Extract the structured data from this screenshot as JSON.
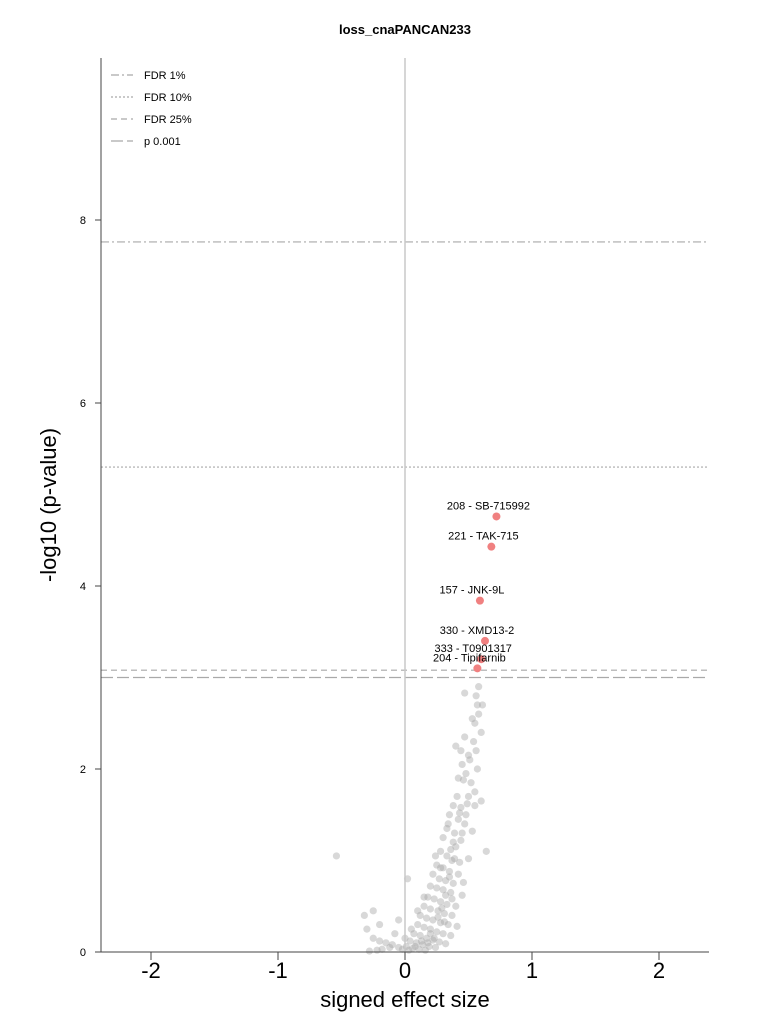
{
  "chart_data": {
    "type": "scatter",
    "title": "loss_cnaPANCAN233",
    "xlabel": "signed effect size",
    "ylabel": "-log10 (p-value)",
    "xlim": [
      -2.4,
      2.4
    ],
    "ylim": [
      0,
      9.8
    ],
    "xticks": [
      "-2",
      "-1",
      "0",
      "1",
      "2"
    ],
    "xtick_values": [
      -2,
      -1,
      0,
      1,
      2
    ],
    "yticks": [
      "0",
      "2",
      "4",
      "6",
      "8"
    ],
    "ytick_values": [
      0,
      2,
      4,
      6,
      8
    ],
    "grid": false,
    "legend_position": "top-left",
    "thresholds": [
      {
        "name": "FDR 1%",
        "y": 7.76,
        "style": "dashdot",
        "color": "#a9a9a9"
      },
      {
        "name": "FDR 10%",
        "y": 5.3,
        "style": "dotted",
        "color": "#a9a9a9"
      },
      {
        "name": "FDR 25%",
        "y": 3.08,
        "style": "dashed",
        "color": "#a9a9a9"
      },
      {
        "name": "p 0.001",
        "y": 3.0,
        "style": "longdash",
        "color": "#a9a9a9"
      }
    ],
    "highlight_color": "#f08080",
    "background_color": "#a9a9a9",
    "highlighted": [
      {
        "label": "208 - SB-715992",
        "x": 0.72,
        "y": 4.76
      },
      {
        "label": "221 - TAK-715",
        "x": 0.68,
        "y": 4.43
      },
      {
        "label": "157 - JNK-9L",
        "x": 0.59,
        "y": 3.84
      },
      {
        "label": "330 - XMD13-2",
        "x": 0.63,
        "y": 3.4
      },
      {
        "label": "333 - T0901317",
        "x": 0.6,
        "y": 3.2
      },
      {
        "label": "204 - Tipifarnib",
        "x": 0.57,
        "y": 3.1
      }
    ],
    "points": [
      [
        -0.54,
        1.05
      ],
      [
        0.64,
        1.1
      ],
      [
        0.58,
        2.9
      ],
      [
        0.56,
        2.8
      ],
      [
        0.61,
        2.7
      ],
      [
        0.47,
        2.83
      ],
      [
        0.58,
        2.6
      ],
      [
        0.55,
        2.5
      ],
      [
        0.6,
        2.4
      ],
      [
        0.54,
        2.3
      ],
      [
        0.4,
        2.25
      ],
      [
        0.44,
        2.2
      ],
      [
        0.5,
        2.15
      ],
      [
        0.57,
        2.0
      ],
      [
        0.45,
        2.05
      ],
      [
        0.48,
        1.95
      ],
      [
        0.42,
        1.9
      ],
      [
        0.46,
        1.88
      ],
      [
        0.6,
        1.65
      ],
      [
        0.55,
        1.75
      ],
      [
        0.5,
        1.7
      ],
      [
        0.38,
        1.6
      ],
      [
        0.44,
        1.58
      ],
      [
        0.35,
        1.5
      ],
      [
        0.42,
        1.45
      ],
      [
        0.47,
        1.4
      ],
      [
        0.33,
        1.35
      ],
      [
        0.45,
        1.3
      ],
      [
        0.3,
        1.25
      ],
      [
        0.38,
        1.2
      ],
      [
        0.4,
        1.15
      ],
      [
        0.28,
        1.1
      ],
      [
        0.33,
        1.05
      ],
      [
        0.37,
        1.0
      ],
      [
        0.25,
        0.95
      ],
      [
        0.3,
        0.92
      ],
      [
        0.35,
        0.88
      ],
      [
        0.42,
        0.85
      ],
      [
        0.22,
        0.85
      ],
      [
        0.27,
        0.8
      ],
      [
        0.32,
        0.78
      ],
      [
        0.38,
        0.75
      ],
      [
        0.2,
        0.72
      ],
      [
        0.25,
        0.7
      ],
      [
        0.3,
        0.68
      ],
      [
        0.36,
        0.65
      ],
      [
        0.45,
        0.62
      ],
      [
        0.18,
        0.6
      ],
      [
        0.23,
        0.58
      ],
      [
        0.28,
        0.55
      ],
      [
        0.33,
        0.52
      ],
      [
        0.4,
        0.5
      ],
      [
        0.15,
        0.5
      ],
      [
        0.2,
        0.47
      ],
      [
        0.26,
        0.45
      ],
      [
        0.31,
        0.42
      ],
      [
        0.37,
        0.4
      ],
      [
        0.12,
        0.4
      ],
      [
        0.17,
        0.37
      ],
      [
        0.22,
        0.35
      ],
      [
        0.28,
        0.32
      ],
      [
        0.34,
        0.3
      ],
      [
        0.41,
        0.28
      ],
      [
        0.1,
        0.3
      ],
      [
        0.15,
        0.27
      ],
      [
        0.2,
        0.25
      ],
      [
        0.25,
        0.22
      ],
      [
        0.3,
        0.2
      ],
      [
        0.36,
        0.18
      ],
      [
        0.07,
        0.2
      ],
      [
        0.12,
        0.18
      ],
      [
        0.17,
        0.15
      ],
      [
        0.22,
        0.13
      ],
      [
        0.27,
        0.11
      ],
      [
        0.32,
        0.09
      ],
      [
        0.04,
        0.12
      ],
      [
        0.09,
        0.1
      ],
      [
        0.14,
        0.08
      ],
      [
        0.19,
        0.06
      ],
      [
        0.24,
        0.05
      ],
      [
        0.01,
        0.06
      ],
      [
        0.06,
        0.04
      ],
      [
        0.11,
        0.03
      ],
      [
        0.16,
        0.02
      ],
      [
        -0.02,
        0.03
      ],
      [
        0.03,
        0.02
      ],
      [
        -0.05,
        0.05
      ],
      [
        -0.1,
        0.08
      ],
      [
        -0.15,
        0.1
      ],
      [
        -0.2,
        0.12
      ],
      [
        -0.25,
        0.15
      ],
      [
        -0.3,
        0.25
      ],
      [
        -0.32,
        0.4
      ],
      [
        -0.25,
        0.45
      ],
      [
        -0.2,
        0.3
      ],
      [
        -0.08,
        0.2
      ],
      [
        -0.05,
        0.35
      ],
      [
        -0.12,
        0.05
      ],
      [
        -0.18,
        0.03
      ],
      [
        -0.22,
        0.02
      ],
      [
        -0.28,
        0.01
      ],
      [
        0.0,
        0.15
      ],
      [
        0.05,
        0.25
      ],
      [
        0.1,
        0.45
      ],
      [
        0.15,
        0.6
      ],
      [
        0.02,
        0.8
      ],
      [
        0.24,
        1.05
      ],
      [
        0.28,
        0.92
      ],
      [
        0.36,
        1.12
      ],
      [
        0.39,
        1.3
      ],
      [
        0.43,
        1.52
      ],
      [
        0.34,
        1.4
      ],
      [
        0.41,
        1.7
      ],
      [
        0.52,
        1.85
      ],
      [
        0.47,
        2.35
      ],
      [
        0.53,
        2.55
      ],
      [
        0.57,
        2.7
      ],
      [
        0.51,
        2.1
      ],
      [
        0.49,
        1.62
      ],
      [
        0.39,
        1.02
      ],
      [
        0.32,
        0.62
      ],
      [
        0.26,
        0.38
      ],
      [
        0.2,
        0.2
      ],
      [
        0.13,
        0.12
      ],
      [
        0.08,
        0.06
      ],
      [
        0.29,
        0.48
      ],
      [
        0.35,
        0.82
      ],
      [
        0.44,
        1.22
      ],
      [
        0.48,
        1.5
      ],
      [
        0.31,
        0.33
      ],
      [
        0.23,
        0.15
      ],
      [
        0.18,
        0.1
      ],
      [
        0.43,
        0.98
      ],
      [
        0.37,
        0.58
      ],
      [
        0.46,
        0.76
      ],
      [
        0.5,
        1.02
      ],
      [
        0.53,
        1.32
      ],
      [
        0.55,
        1.6
      ],
      [
        0.56,
        2.2
      ]
    ]
  }
}
